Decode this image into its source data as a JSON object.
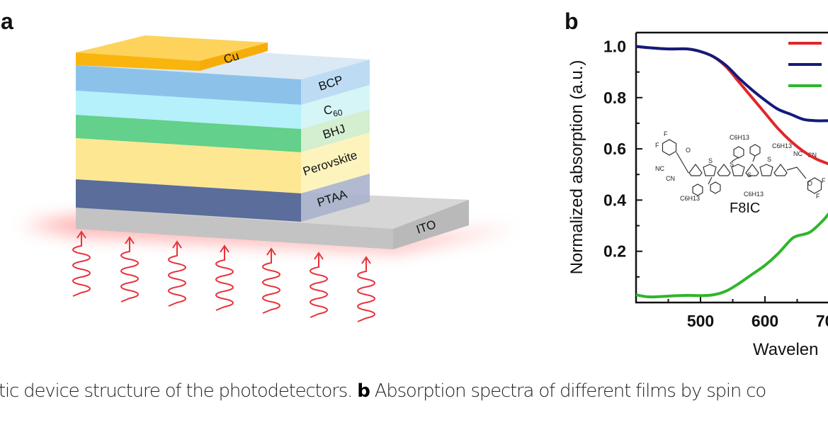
{
  "panel_a": {
    "label": "a",
    "layers": [
      "Cu",
      "BCP",
      "C",
      "BHJ",
      "Perovskite",
      "PTAA",
      "ITO"
    ],
    "c60_subscript": "60",
    "colors": {
      "Cu": "#f9b50d",
      "BCP": "#8cc2ea",
      "C60": "#b4f1fa",
      "BHJ": "#63d08b",
      "Perovskite": "#fde792",
      "PTAA": "#5a6d9b",
      "ITO": "#c3c3c3",
      "light": "#e8333a"
    }
  },
  "panel_b": {
    "label": "b",
    "molecule_name": "F8IC",
    "molecule_atoms": [
      "F",
      "F",
      "O",
      "NC",
      "CN",
      "S",
      "C6H13",
      "NC",
      "CN",
      "O",
      "F",
      "F"
    ]
  },
  "chart_data": {
    "type": "line",
    "title": "",
    "xlabel": "Wavelen",
    "ylabel": "Normalized absorption (a.u.)",
    "xlim": [
      400,
      708
    ],
    "ylim": [
      0,
      1.05
    ],
    "xticks": [
      500,
      600,
      700
    ],
    "yticks": [
      0.2,
      0.4,
      0.6,
      0.8,
      1.0
    ],
    "ytick_labels": [
      "0.2",
      "0.4",
      "0.6",
      "0.8",
      "1.0"
    ],
    "xtick_labels": [
      "500",
      "600",
      "700"
    ],
    "grid": false,
    "legend": "top-right",
    "series": [
      {
        "color": "#e0262b",
        "x": [
          400,
          420,
          450,
          480,
          500,
          520,
          540,
          560,
          580,
          600,
          620,
          640,
          660,
          680,
          700,
          708
        ],
        "y": [
          1.0,
          0.995,
          0.99,
          0.99,
          0.98,
          0.96,
          0.92,
          0.86,
          0.8,
          0.74,
          0.68,
          0.63,
          0.59,
          0.56,
          0.54,
          0.53
        ]
      },
      {
        "color": "#131b7a",
        "x": [
          400,
          420,
          450,
          480,
          500,
          520,
          540,
          560,
          580,
          600,
          620,
          640,
          660,
          680,
          700,
          708
        ],
        "y": [
          1.0,
          0.995,
          0.99,
          0.99,
          0.98,
          0.96,
          0.925,
          0.875,
          0.83,
          0.79,
          0.755,
          0.735,
          0.715,
          0.71,
          0.71,
          0.71
        ]
      },
      {
        "color": "#2fb52b",
        "x": [
          400,
          420,
          450,
          480,
          500,
          520,
          540,
          560,
          580,
          600,
          620,
          640,
          650,
          670,
          690,
          700,
          708
        ],
        "y": [
          0.03,
          0.022,
          0.025,
          0.028,
          0.027,
          0.03,
          0.045,
          0.075,
          0.11,
          0.145,
          0.19,
          0.245,
          0.26,
          0.275,
          0.32,
          0.35,
          0.37
        ]
      }
    ]
  },
  "caption": {
    "part1": "tic device structure of the photodetectors. ",
    "bold": "b",
    "part2": " Absorption spectra of different films by spin co"
  }
}
